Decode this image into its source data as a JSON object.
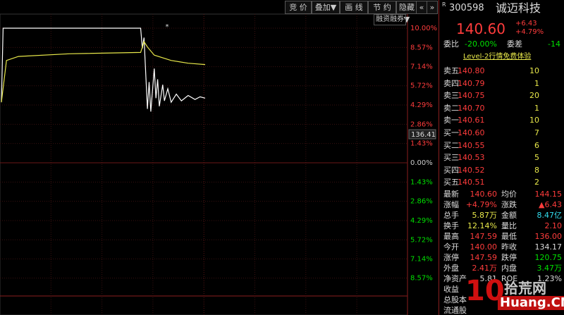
{
  "toolbar": {
    "buttons": [
      "竞 价",
      "叠加▼",
      "画 线",
      "节 约",
      "隐藏▼",
      "«",
      "»"
    ],
    "margin_label": "融资融券"
  },
  "chart_data": {
    "type": "line",
    "series": [
      {
        "color": "#ffffff",
        "x": [
          0,
          1,
          82,
          83,
          84,
          86,
          87,
          88,
          90,
          91,
          92,
          93,
          95,
          96,
          98,
          100,
          103,
          106,
          110,
          114,
          117,
          120
        ],
        "values": [
          4.5,
          10,
          10,
          8.5,
          9.3,
          4.0,
          6.0,
          3.8,
          7.0,
          4.8,
          6.2,
          4.2,
          5.8,
          4.6,
          5.5,
          4.5,
          5.1,
          4.6,
          5.0,
          4.7,
          4.9,
          4.8
        ]
      },
      {
        "color": "#e8e84a",
        "x": [
          0,
          3,
          10,
          40,
          82,
          84,
          86,
          90,
          100,
          110,
          120
        ],
        "values": [
          4.5,
          7.6,
          7.9,
          8.1,
          8.2,
          9.0,
          8.6,
          8.0,
          7.6,
          7.4,
          7.3
        ]
      }
    ],
    "xlim": [
      0,
      240
    ],
    "ylim": [
      -10,
      10
    ],
    "yticks": [
      {
        "value": 10,
        "label": "10.00%"
      },
      {
        "value": 8.57,
        "label": "8.57%"
      },
      {
        "value": 7.14,
        "label": "7.14%"
      },
      {
        "value": 5.72,
        "label": "5.72%"
      },
      {
        "value": 4.29,
        "label": "4.29%"
      },
      {
        "value": 2.86,
        "label": "2.86%"
      },
      {
        "value": 1.43,
        "label": "1.43%"
      },
      {
        "value": 0,
        "label": "0.00%"
      },
      {
        "value": -1.43,
        "label": "1.43%"
      },
      {
        "value": -2.86,
        "label": "2.86%"
      },
      {
        "value": -4.29,
        "label": "4.29%"
      },
      {
        "value": -5.72,
        "label": "5.72%"
      },
      {
        "value": -7.14,
        "label": "7.14%"
      },
      {
        "value": -8.57,
        "label": "8.57%"
      }
    ],
    "cursor_label": "136.41",
    "grid": true
  },
  "quote": {
    "code": "300598",
    "name": "诚迈科技",
    "price": "140.60",
    "change": "+6.43",
    "change_pct": "+4.79%",
    "wei_bi_label": "委比",
    "wei_bi": "-20.00%",
    "wei_cha_label": "委差",
    "wei_cha": "-14",
    "level2": "Level-2行情免费体验",
    "asks": [
      [
        "卖五",
        "140.80",
        "10"
      ],
      [
        "卖四",
        "140.79",
        "1"
      ],
      [
        "卖三",
        "140.75",
        "20"
      ],
      [
        "卖二",
        "140.70",
        "1"
      ],
      [
        "卖一",
        "140.61",
        "10"
      ]
    ],
    "bids": [
      [
        "买一",
        "140.60",
        "7"
      ],
      [
        "买二",
        "140.55",
        "6"
      ],
      [
        "买三",
        "140.53",
        "5"
      ],
      [
        "买四",
        "140.52",
        "8"
      ],
      [
        "买五",
        "140.51",
        "2"
      ]
    ],
    "stats": [
      [
        "最新",
        "140.60",
        "均价",
        "144.15"
      ],
      [
        "涨幅",
        "+4.79%",
        "涨跌",
        "▲6.43"
      ],
      [
        "总手",
        "5.87万",
        "金额",
        "8.47亿"
      ],
      [
        "换手",
        "12.14%",
        "量比",
        "2.10"
      ],
      [
        "最高",
        "147.59",
        "最低",
        "136.00"
      ],
      [
        "今开",
        "140.00",
        "昨收",
        "134.17"
      ],
      [
        "涨停",
        "147.59",
        "跌停",
        "120.75"
      ],
      [
        "外盘",
        "2.41万",
        "内盘",
        "3.47万"
      ],
      [
        "净资产",
        "5.81",
        "ROE",
        "1.23%"
      ],
      [
        "收益"
      ],
      [
        "总股本"
      ],
      [
        "流通股"
      ]
    ]
  },
  "watermark": {
    "number": "10",
    "site": "拾荒网",
    "domain": "Huang.CN"
  }
}
